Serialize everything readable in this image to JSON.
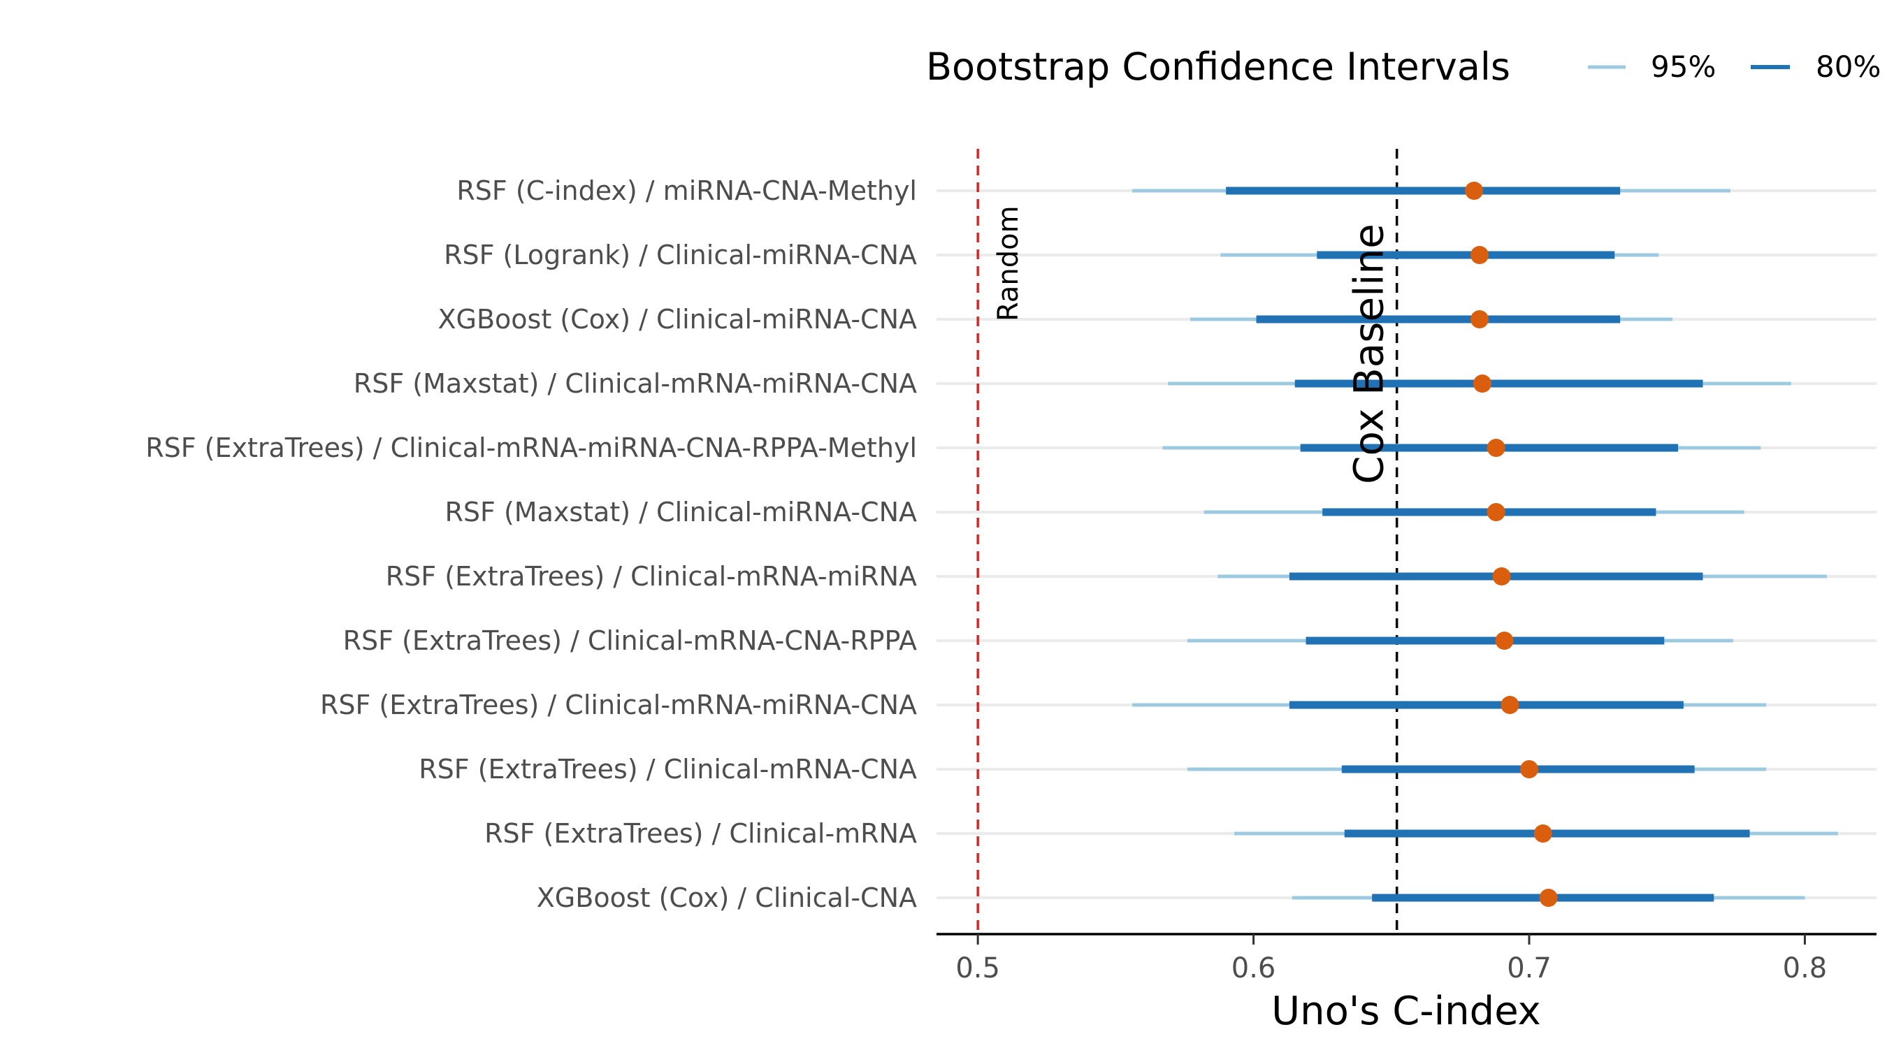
{
  "chart_data": {
    "type": "forest",
    "xlabel": "Uno's C-index",
    "xlim": [
      0.485,
      0.826
    ],
    "xticks": [
      0.5,
      0.6,
      0.7,
      0.8
    ],
    "xtick_labels": [
      "0.5",
      "0.6",
      "0.7",
      "0.8"
    ],
    "legend": {
      "title": "Bootstrap Confidence Intervals",
      "position": "top",
      "entries": [
        {
          "label": "95%",
          "color": "#9ecae1"
        },
        {
          "label": "80%",
          "color": "#2171b5"
        }
      ]
    },
    "reference_lines": [
      {
        "label": "Random",
        "x": 0.5,
        "color": "#d62728"
      },
      {
        "label": "Cox Baseline",
        "x": 0.652,
        "color": "#000000"
      }
    ],
    "point_color": "#d95f0e",
    "rows": [
      {
        "label": "RSF (C-index) / miRNA-CNA-Methyl",
        "estimate": 0.68,
        "ci95": [
          0.556,
          0.773
        ],
        "ci80": [
          0.59,
          0.733
        ]
      },
      {
        "label": "RSF (Logrank) / Clinical-miRNA-CNA",
        "estimate": 0.682,
        "ci95": [
          0.588,
          0.747
        ],
        "ci80": [
          0.623,
          0.731
        ]
      },
      {
        "label": "XGBoost (Cox) / Clinical-miRNA-CNA",
        "estimate": 0.682,
        "ci95": [
          0.577,
          0.752
        ],
        "ci80": [
          0.601,
          0.733
        ]
      },
      {
        "label": "RSF (Maxstat) / Clinical-mRNA-miRNA-CNA",
        "estimate": 0.683,
        "ci95": [
          0.569,
          0.795
        ],
        "ci80": [
          0.615,
          0.763
        ]
      },
      {
        "label": "RSF (ExtraTrees) / Clinical-mRNA-miRNA-CNA-RPPA-Methyl",
        "estimate": 0.688,
        "ci95": [
          0.567,
          0.784
        ],
        "ci80": [
          0.617,
          0.754
        ]
      },
      {
        "label": "RSF (Maxstat) / Clinical-miRNA-CNA",
        "estimate": 0.688,
        "ci95": [
          0.582,
          0.778
        ],
        "ci80": [
          0.625,
          0.746
        ]
      },
      {
        "label": "RSF (ExtraTrees) / Clinical-mRNA-miRNA",
        "estimate": 0.69,
        "ci95": [
          0.587,
          0.808
        ],
        "ci80": [
          0.613,
          0.763
        ]
      },
      {
        "label": "RSF (ExtraTrees) / Clinical-mRNA-CNA-RPPA",
        "estimate": 0.691,
        "ci95": [
          0.576,
          0.774
        ],
        "ci80": [
          0.619,
          0.749
        ]
      },
      {
        "label": "RSF (ExtraTrees) / Clinical-mRNA-miRNA-CNA",
        "estimate": 0.693,
        "ci95": [
          0.556,
          0.786
        ],
        "ci80": [
          0.613,
          0.756
        ]
      },
      {
        "label": "RSF (ExtraTrees) / Clinical-mRNA-CNA",
        "estimate": 0.7,
        "ci95": [
          0.576,
          0.786
        ],
        "ci80": [
          0.632,
          0.76
        ]
      },
      {
        "label": "RSF (ExtraTrees) / Clinical-mRNA",
        "estimate": 0.705,
        "ci95": [
          0.593,
          0.812
        ],
        "ci80": [
          0.633,
          0.78
        ]
      },
      {
        "label": "XGBoost (Cox) / Clinical-CNA",
        "estimate": 0.707,
        "ci95": [
          0.614,
          0.8
        ],
        "ci80": [
          0.643,
          0.767
        ]
      }
    ]
  }
}
